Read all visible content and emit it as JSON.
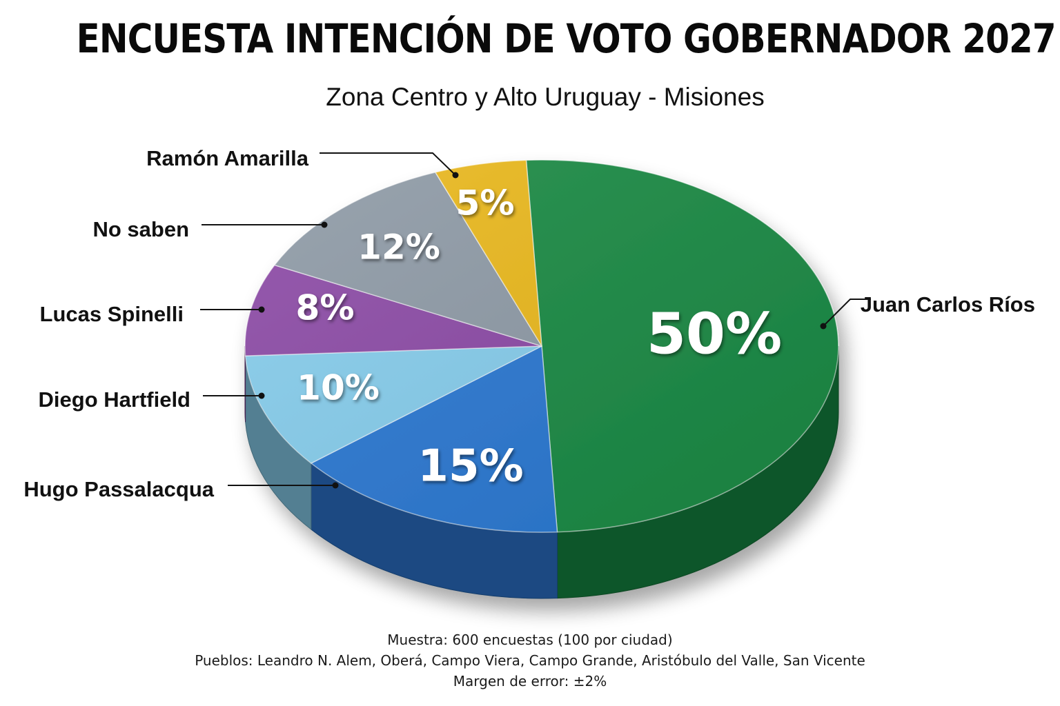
{
  "title": "ENCUESTA INTENCIÓN DE VOTO GOBERNADOR 2027",
  "subtitle": "Zona Centro y Alto Uruguay - Misiones",
  "footer": {
    "sample": "Muestra: 600 encuestas (100 por ciudad)",
    "towns": "Pueblos: Leandro N. Alem, Oberá, Campo Viera, Campo Grande, Aristóbulo del Valle, San Vicente",
    "margin": "Margen de error: ±2%"
  },
  "chart_data": {
    "type": "pie",
    "style": "3d",
    "title": "ENCUESTA INTENCIÓN DE VOTO GOBERNADOR 2027",
    "subtitle": "Zona Centro y Alto Uruguay - Misiones",
    "unit": "%",
    "slices": [
      {
        "name": "Juan Carlos Ríos",
        "value": 50,
        "label": "50%",
        "color": "#1a8a44"
      },
      {
        "name": "Hugo Passalacqua",
        "value": 15,
        "label": "15%",
        "color": "#2a78d2"
      },
      {
        "name": "Diego Hartfield",
        "value": 10,
        "label": "10%",
        "color": "#86cdec"
      },
      {
        "name": "Lucas Spinelli",
        "value": 8,
        "label": "8%",
        "color": "#8c4aa6"
      },
      {
        "name": "No saben",
        "value": 12,
        "label": "12%",
        "color": "#8e9aa6"
      },
      {
        "name": "Ramón Amarilla",
        "value": 5,
        "label": "5%",
        "color": "#eab81c"
      }
    ]
  }
}
